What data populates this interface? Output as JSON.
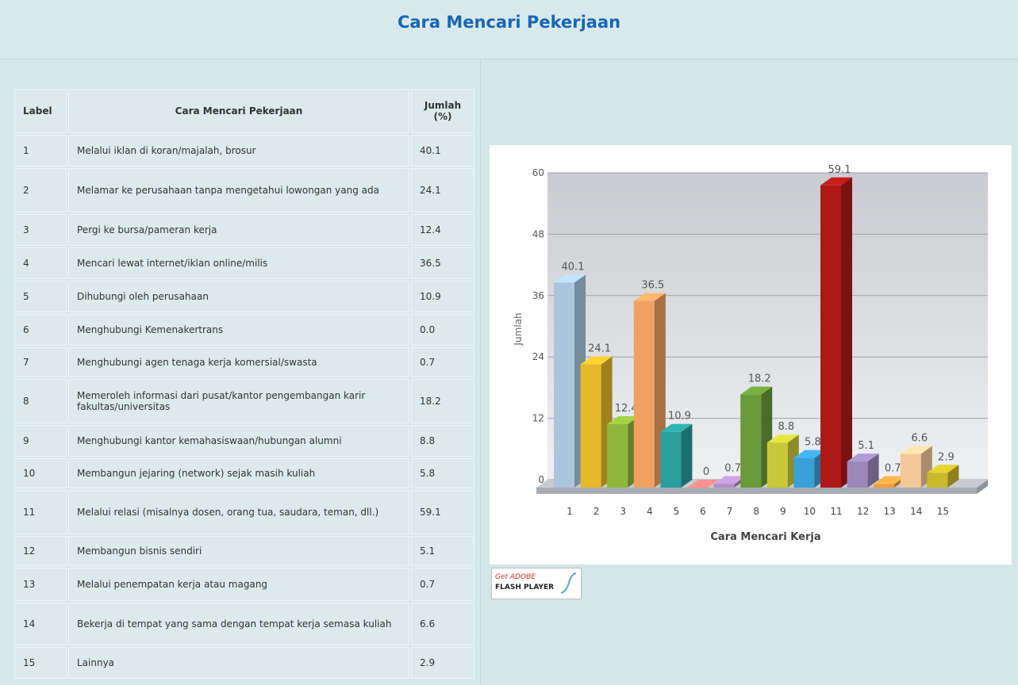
{
  "header": {
    "title": "Cara Mencari Pekerjaan"
  },
  "table": {
    "columns": [
      "Label",
      "Cara Mencari Pekerjaan",
      "Jumlah (%)"
    ],
    "rows": [
      [
        "1",
        "Melalui iklan di koran/majalah, brosur",
        "40.1"
      ],
      [
        "2",
        "Melamar ke perusahaan tanpa mengetahui lowongan yang ada",
        "24.1"
      ],
      [
        "3",
        "Pergi ke bursa/pameran kerja",
        "12.4"
      ],
      [
        "4",
        "Mencari lewat internet/iklan online/milis",
        "36.5"
      ],
      [
        "5",
        "Dihubungi oleh perusahaan",
        "10.9"
      ],
      [
        "6",
        "Menghubungi Kemenakertrans",
        "0.0"
      ],
      [
        "7",
        "Menghubungi agen tenaga kerja komersial/swasta",
        "0.7"
      ],
      [
        "8",
        "Memeroleh informasi dari pusat/kantor pengembangan karir fakultas/universitas",
        "18.2"
      ],
      [
        "9",
        "Menghubungi kantor kemahasiswaan/hubungan alumni",
        "8.8"
      ],
      [
        "10",
        "Membangun jejaring (network) sejak masih kuliah",
        "5.8"
      ],
      [
        "11",
        "Melalui relasi (misalnya dosen, orang tua, saudara, teman, dll.)",
        "59.1"
      ],
      [
        "12",
        "Membangun bisnis sendiri",
        "5.1"
      ],
      [
        "13",
        "Melalui penempatan kerja atau magang",
        "0.7"
      ],
      [
        "14",
        "Bekerja di tempat yang sama dengan tempat kerja semasa kuliah",
        "6.6"
      ],
      [
        "15",
        "Lainnya",
        "2.9"
      ]
    ]
  },
  "chart_data": {
    "type": "bar3d",
    "x_label": "Cara Mencari Kerja",
    "y_label": "Jumlah",
    "categories": [
      "1",
      "2",
      "3",
      "4",
      "5",
      "6",
      "7",
      "8",
      "9",
      "10",
      "11",
      "12",
      "13",
      "14",
      "15"
    ],
    "values": [
      40.1,
      24.1,
      12.4,
      36.5,
      10.9,
      0,
      0.7,
      18.2,
      8.8,
      5.8,
      59.1,
      5.1,
      0.7,
      6.6,
      2.9
    ],
    "colors": [
      "#a9c6de",
      "#e6b82a",
      "#8fb83a",
      "#f0a060",
      "#2a9d9d",
      "#f08080",
      "#b38fc8",
      "#6a9a3a",
      "#c8c83a",
      "#3aa0d8",
      "#b01818",
      "#9a88b8",
      "#f0a040",
      "#f5c89a",
      "#c8b82a"
    ],
    "ylim": [
      0,
      60
    ],
    "yticks": [
      0,
      12,
      24,
      36,
      48,
      60
    ],
    "grid": true
  },
  "badge": {
    "line1": "Get ADOBE",
    "line2": "FLASH PLAYER"
  }
}
